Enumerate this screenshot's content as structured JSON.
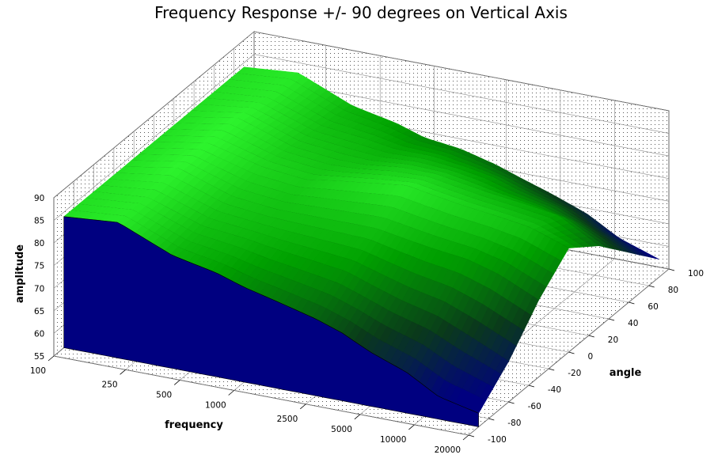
{
  "chart_data": {
    "type": "surface",
    "title": "Frequency Response +/- 90 degrees on Vertical Axis",
    "xlabel": "frequency",
    "ylabel": "angle",
    "zlabel": "amplitude",
    "x_ticks": [
      "100",
      "250",
      "500",
      "1000",
      "2500",
      "5000",
      "10000",
      "20000"
    ],
    "x_scale": "log",
    "x_range": [
      100,
      20000
    ],
    "y_ticks": [
      "-100",
      "-80",
      "-60",
      "-40",
      "-20",
      "0",
      "20",
      "40",
      "60",
      "80",
      "100"
    ],
    "y_range": [
      -100,
      100
    ],
    "z_ticks": [
      "55",
      "60",
      "65",
      "70",
      "75",
      "80",
      "85",
      "90"
    ],
    "z_range": [
      55,
      90
    ],
    "grid": true,
    "colormap": [
      "#000080",
      "#0a3a1a",
      "#00a000",
      "#33ff33"
    ],
    "front_face_color": "#000080",
    "series": [
      {
        "angle": -90,
        "frequency": [
          100,
          200,
          400,
          700,
          1000,
          1600,
          2500,
          3500,
          5000,
          8000,
          12000,
          20000
        ],
        "amplitude": [
          84,
          85,
          80,
          78,
          76,
          74,
          72,
          70,
          67,
          64,
          60,
          58
        ]
      },
      {
        "angle": -60,
        "frequency": [
          100,
          200,
          400,
          700,
          1000,
          1600,
          2500,
          3500,
          5000,
          8000,
          12000,
          20000
        ],
        "amplitude": [
          84,
          85,
          81,
          80,
          79,
          78,
          77,
          75,
          73,
          71,
          68,
          64
        ]
      },
      {
        "angle": -30,
        "frequency": [
          100,
          200,
          400,
          700,
          1000,
          1600,
          2500,
          3500,
          5000,
          8000,
          12000,
          20000
        ],
        "amplitude": [
          84,
          86,
          82,
          81,
          81,
          81,
          81,
          80,
          79,
          78,
          76,
          72
        ]
      },
      {
        "angle": 0,
        "frequency": [
          100,
          200,
          400,
          700,
          1000,
          1600,
          2500,
          3500,
          5000,
          8000,
          12000,
          20000
        ],
        "amplitude": [
          84,
          86,
          83,
          82,
          83,
          84,
          85,
          84,
          83,
          82,
          81,
          78
        ]
      },
      {
        "angle": 30,
        "frequency": [
          100,
          200,
          400,
          700,
          1000,
          1600,
          2500,
          3500,
          5000,
          8000,
          12000,
          20000
        ],
        "amplitude": [
          84,
          86,
          82,
          81,
          81,
          82,
          82,
          81,
          80,
          79,
          78,
          73
        ]
      },
      {
        "angle": 60,
        "frequency": [
          100,
          200,
          400,
          700,
          1000,
          1600,
          2500,
          3500,
          5000,
          8000,
          12000,
          20000
        ],
        "amplitude": [
          84,
          85,
          81,
          80,
          79,
          79,
          78,
          77,
          75,
          73,
          70,
          66
        ]
      },
      {
        "angle": 90,
        "frequency": [
          100,
          200,
          400,
          700,
          1000,
          1600,
          2500,
          3500,
          5000,
          8000,
          12000,
          20000
        ],
        "amplitude": [
          84,
          85,
          80,
          78,
          76,
          75,
          73,
          71,
          69,
          66,
          62,
          59
        ]
      }
    ]
  }
}
